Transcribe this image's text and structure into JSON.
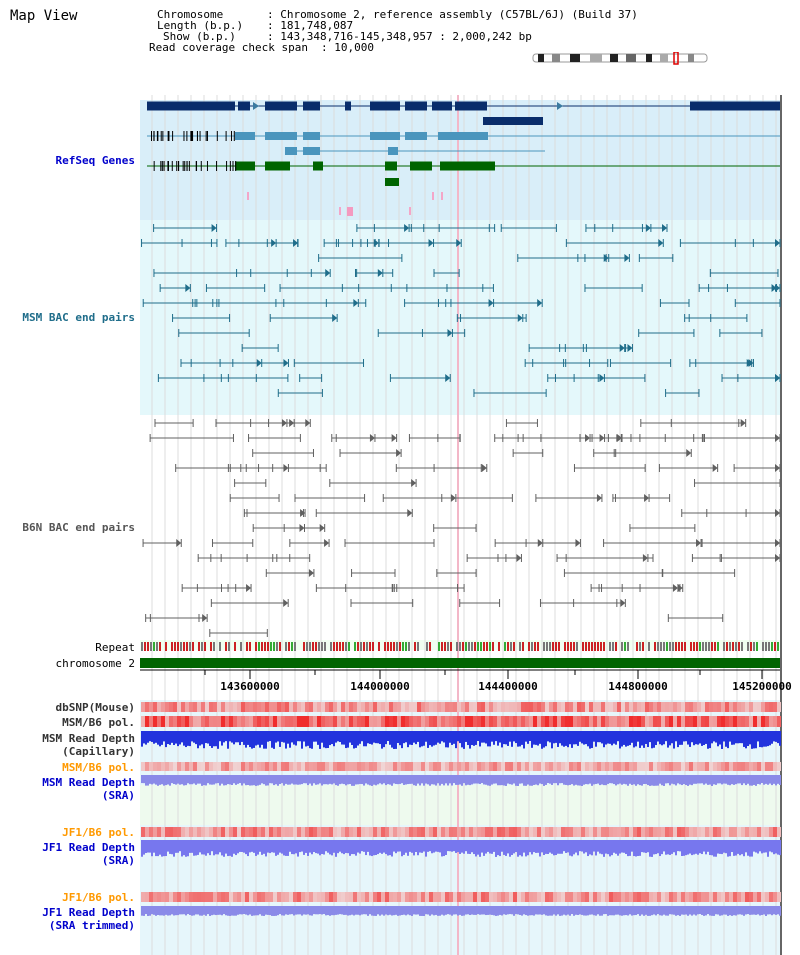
{
  "title": "Map View",
  "info": {
    "chromosome_key": "Chromosome",
    "chromosome_val": "Chromosome 2, reference assembly (C57BL/6J) (Build 37)",
    "length_key": "Length (b.p.)",
    "length_val": "181,748,087",
    "show_key": "Show (b.p.)",
    "show_val": "143,348,716-145,348,957 : 2,000,242 bp",
    "read_key": "Read coverage check span",
    "read_val": "10,000"
  },
  "tracks": {
    "refseq": "RefSeq Genes",
    "msm_bac": "MSM BAC end pairs",
    "b6n_bac": "B6N BAC end pairs",
    "repeat": "Repeat",
    "chromosome": "chromosome 2",
    "dbsnp": "dbSNP(Mouse)",
    "msm_pol": "MSM/B6 pol.",
    "msm_depth_cap_1": "MSM Read Depth",
    "msm_depth_cap_2": "(Capillary)",
    "msm_pol_2": "MSM/B6 pol.",
    "msm_depth_sra_1": "MSM Read Depth",
    "msm_depth_sra_2": "(SRA)",
    "jf1_pol": "JF1/B6 pol.",
    "jf1_depth_1": "JF1 Read Depth",
    "jf1_depth_2": "(SRA)",
    "jf1_pol_2": "JF1/B6 pol.",
    "jf1_trim_1": "JF1 Read Depth",
    "jf1_trim_2": "(SRA trimmed)"
  },
  "axis_ticks": [
    "143600000",
    "144000000",
    "144400000",
    "144800000",
    "145200000"
  ],
  "colors": {
    "gene_dark": "#0a2d6b",
    "gene_mid": "#4a95bd",
    "gene_green": "#006400",
    "refseq_bg": "#d9eef9",
    "msm_bg": "#e4f8fb",
    "msm_label": "#1f6d8a",
    "b6n_label": "#555555",
    "orange": "#ff9900",
    "blue_label": "#0000cc",
    "chrom_green": "#006400"
  }
}
